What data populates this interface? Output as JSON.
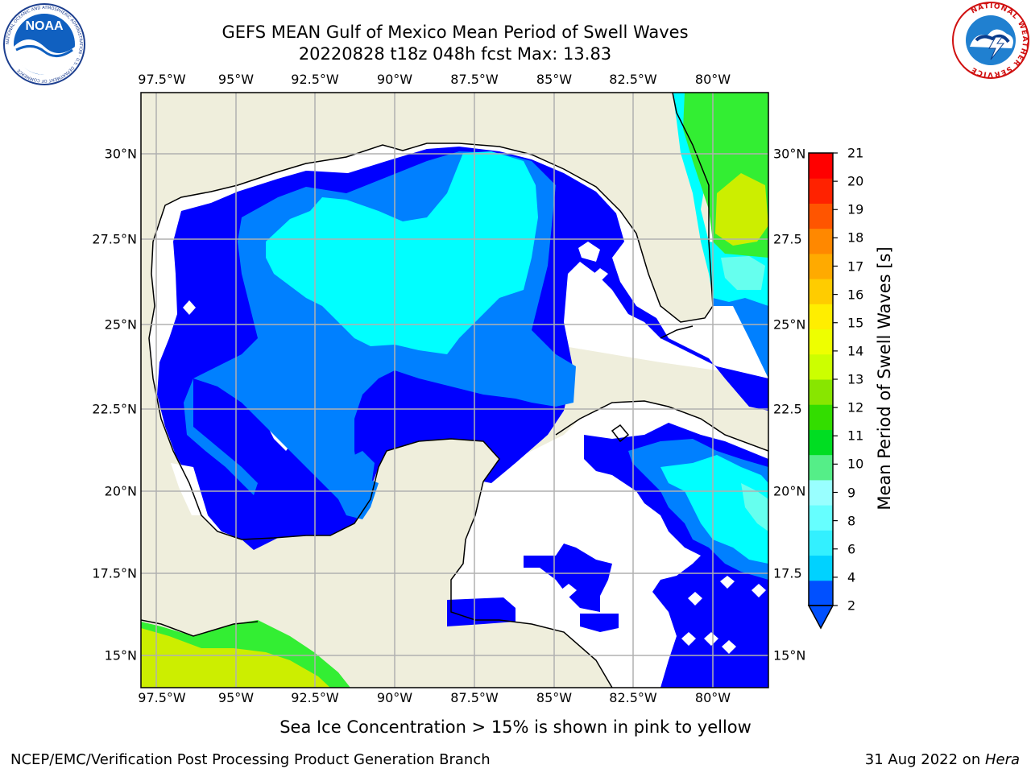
{
  "title_line1": "GEFS MEAN Gulf of Mexico Mean Period of Swell Waves",
  "title_line2": "20220828 t18z 048h fcst   Max: 13.83",
  "lon_labels": [
    "97.5°W",
    "95°W",
    "92.5°W",
    "90°W",
    "87.5°W",
    "85°W",
    "82.5°W",
    "80°W"
  ],
  "lat_labels_left": [
    "30°N",
    "27.5°N",
    "25°N",
    "22.5°N",
    "20°N",
    "17.5°N",
    "15°N"
  ],
  "lat_labels_right": [
    "30°N",
    "27.5",
    "25°N",
    "22.5",
    "20°N",
    "17.5",
    "15°N"
  ],
  "colorbar": {
    "title": "Mean Period of Swell Waves [s]",
    "ticks": [
      "21",
      "20",
      "19",
      "18",
      "17",
      "16",
      "15",
      "14",
      "13",
      "12",
      "11",
      "10",
      "9",
      "8",
      "6",
      "4",
      "2"
    ],
    "colors": [
      "#0050ff",
      "#00d2ff",
      "#33f0ff",
      "#66ffff",
      "#99ffff",
      "#55ee88",
      "#00dd22",
      "#33dd00",
      "#88e600",
      "#ccff00",
      "#eeff00",
      "#ffee00",
      "#ffcc00",
      "#ffaa00",
      "#ff8800",
      "#ff5500",
      "#ff2200",
      "#ff0000"
    ]
  },
  "field_colors": {
    "land": "#efeedc",
    "band_2_4": "#0000ff",
    "band_4_6": "#0080ff",
    "band_6_8": "#00ffff",
    "band_8_9": "#66ffee",
    "band_10_11": "#33ee33",
    "band_12_13": "#ccee00",
    "band_11_12": "#88e600"
  },
  "footnote": "Sea Ice Concentration > 15% is shown in pink to yellow",
  "credit": "NCEP/EMC/Verification Post Processing Product Generation Branch",
  "date_text": "31 Aug 2022 on ",
  "date_host": "Hera",
  "logos": {
    "noaa_text": "NOAA",
    "noaa_ring": "NATIONAL OCEANIC AND ATMOSPHERIC ADMINISTRATION · U.S. DEPARTMENT OF COMMERCE",
    "nws_ring": "NATIONAL WEATHER SERVICE"
  }
}
